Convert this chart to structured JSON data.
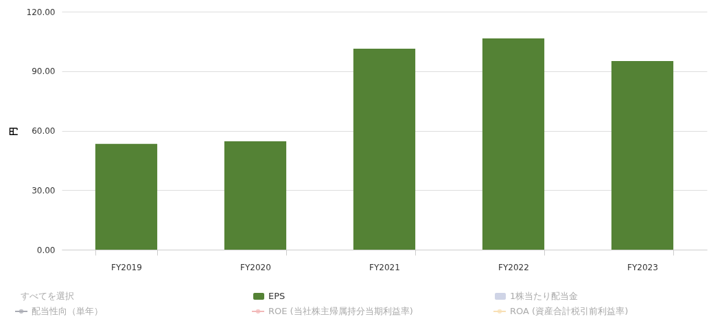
{
  "chart_data": {
    "type": "bar",
    "ylabel": "円",
    "categories": [
      "FY2019",
      "FY2020",
      "FY2021",
      "FY2022",
      "FY2023"
    ],
    "series": [
      {
        "name": "EPS",
        "color": "#548235",
        "values": [
          53.3,
          54.6,
          101.3,
          106.5,
          95.1
        ]
      },
      {
        "name": "1株当たり配当金",
        "color": "#cfd4e6",
        "values": [
          null,
          null,
          null,
          null,
          null
        ]
      },
      {
        "name": "配当性向（単年）",
        "type": "line",
        "color": "#a9abb3",
        "values": [
          null,
          null,
          null,
          null,
          null
        ]
      },
      {
        "name": "ROE (当社株主帰属持分当期利益率)",
        "type": "line",
        "color": "#f2b8b8",
        "values": [
          null,
          null,
          null,
          null,
          null
        ]
      },
      {
        "name": "ROA (資産合計税引前利益率)",
        "type": "line",
        "color": "#f8dfb5",
        "values": [
          null,
          null,
          null,
          null,
          null
        ]
      }
    ],
    "annotations": [
      "すべてを選択"
    ],
    "ylim": [
      0,
      120
    ],
    "yticks": [
      {
        "value": 0,
        "label": "0.00"
      },
      {
        "value": 30,
        "label": "30.00"
      },
      {
        "value": 60,
        "label": "60.00"
      },
      {
        "value": 90,
        "label": "90.00"
      },
      {
        "value": 120,
        "label": "120.00"
      }
    ],
    "grid": "y",
    "marker": "circle",
    "legend": "bottom"
  }
}
